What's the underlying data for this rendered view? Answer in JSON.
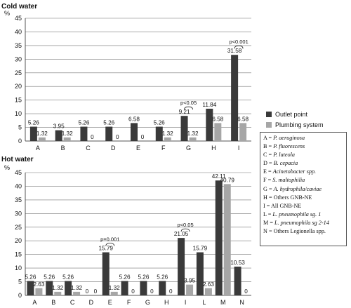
{
  "chart_data": [
    {
      "type": "bar",
      "title": "Cold water",
      "ylabel": "%",
      "ylim": [
        0,
        45
      ],
      "yticks": [
        0,
        5,
        10,
        15,
        20,
        25,
        30,
        35,
        40,
        45
      ],
      "grid": true,
      "categories": [
        "A",
        "B",
        "C",
        "D",
        "E",
        "F",
        "G",
        "H",
        "I"
      ],
      "series": [
        {
          "name": "Outlet point",
          "color": "#3a3a3a",
          "values": [
            5.26,
            3.95,
            5.26,
            5.26,
            6.58,
            5.26,
            9.21,
            11.84,
            31.58
          ],
          "labels": [
            "5.26",
            "3.95",
            "5.26",
            "5.26",
            "6.58",
            "5.26",
            "9.21",
            "11.84",
            "31.58"
          ]
        },
        {
          "name": "Plumbing system",
          "color": "#a6a6a6",
          "values": [
            1.32,
            1.32,
            0,
            0,
            0,
            1.32,
            1.32,
            6.58,
            6.58
          ],
          "labels": [
            "1.32",
            "1.32",
            "0",
            "0",
            "0",
            "1.32",
            "1.32",
            "6.58",
            "6.58"
          ]
        }
      ],
      "annotations": [
        {
          "category": "G",
          "text": "p<0.05"
        },
        {
          "category": "I",
          "text": "p<0.001"
        }
      ],
      "legend": "right"
    },
    {
      "type": "bar",
      "title": "Hot water",
      "ylabel": "%",
      "ylim": [
        0,
        45
      ],
      "yticks": [
        0,
        5,
        10,
        15,
        20,
        25,
        30,
        35,
        40,
        45
      ],
      "grid": true,
      "categories": [
        "A",
        "B",
        "C",
        "D",
        "E",
        "F",
        "G",
        "H",
        "I",
        "L",
        "M",
        "N"
      ],
      "series": [
        {
          "name": "Outlet point",
          "color": "#3a3a3a",
          "values": [
            5.26,
            5.26,
            5.26,
            0,
            15.79,
            5.26,
            5.26,
            5.26,
            21.05,
            15.79,
            42.11,
            10.53
          ],
          "labels": [
            "5.26",
            "5.26",
            "5.26",
            "0",
            "15.79",
            "5.26",
            "5.26",
            "5.26",
            "21.05",
            "15.79",
            "42.11",
            "10.53"
          ]
        },
        {
          "name": "Plumbing system",
          "color": "#a6a6a6",
          "values": [
            2.63,
            1.32,
            1.32,
            0,
            1.32,
            0,
            0,
            0,
            3.95,
            2.63,
            40.79,
            0
          ],
          "labels": [
            "2.63",
            "1.32",
            "1.32",
            "0",
            "1.32",
            "0",
            "0",
            "0",
            "3.95",
            "2.63",
            "40.79",
            "0"
          ]
        }
      ],
      "annotations": [
        {
          "category": "E",
          "text": "p=0.001"
        },
        {
          "category": "I",
          "text": "p<0.05"
        }
      ]
    }
  ],
  "legend_key": [
    {
      "code": "A = ",
      "name": "P. aeruginosa",
      "italic": true
    },
    {
      "code": "B = ",
      "name": "P. fluorescens",
      "italic": true
    },
    {
      "code": "C = ",
      "name": "P. luteola",
      "italic": true
    },
    {
      "code": "D = ",
      "name": "B. cepacia",
      "italic": true
    },
    {
      "code": "E = ",
      "name": "Acinetobacter spp.",
      "italic": true
    },
    {
      "code": "F = ",
      "name": "S. maltophilia",
      "italic": true
    },
    {
      "code": "G = ",
      "name": "A. hydrophila/caviae",
      "italic": true
    },
    {
      "code": "H = ",
      "name": "Others GNB-NE",
      "italic": false
    },
    {
      "code": "I = ",
      "name": "All GNB-NE",
      "italic": false
    },
    {
      "code": "L = ",
      "name": "L. pneumophila sg. 1",
      "italic": true
    },
    {
      "code": "M = ",
      "name": "L. pneumophila sg 2-14",
      "italic": true
    },
    {
      "code": "N = ",
      "name": "Others Legionella spp.",
      "italic": false
    }
  ]
}
